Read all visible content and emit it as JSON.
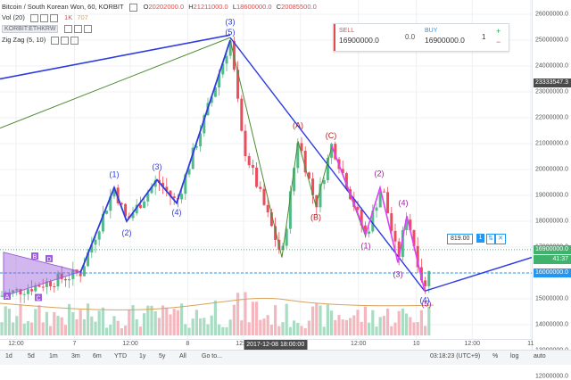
{
  "header": {
    "symbol": "Bitcoin / South Korean Won, 60, KORBIT",
    "ohlc": [
      {
        "label": "O",
        "value": "20202000.0"
      },
      {
        "label": "H",
        "value": "21211000.0"
      },
      {
        "label": "L",
        "value": "18600000.0"
      },
      {
        "label": "C",
        "value": "20085500.0"
      }
    ],
    "volume_label": "Vol (20)",
    "volume_values": [
      "1K",
      "707"
    ],
    "compare_symbol": "KORBIT:ETHKRW",
    "indicator_label": "Zig Zag (5, 10)"
  },
  "trade_panel": {
    "sell_label": "SELL",
    "sell_price": "16900000.0",
    "spread": "0.0",
    "buy_label": "BUY",
    "buy_price": "16900000.0",
    "quantity": "1",
    "plus": "+",
    "minus": "−",
    "sell_color": "#e04b4b",
    "buy_color": "#2196f3"
  },
  "price_axis": {
    "ticks": [
      "26000000.0",
      "25000000.0",
      "24000000.0",
      "23000000.0",
      "22000000.0",
      "21000000.0",
      "20000000.0",
      "19000000.0",
      "18000000.0",
      "17000000.0",
      "16000000.0",
      "15000000.0",
      "14000000.0",
      "13000000.0",
      "12000000.0"
    ],
    "tick_values": [
      26000000,
      25000000,
      24000000,
      23000000,
      22000000,
      21000000,
      20000000,
      19000000,
      18000000,
      17000000,
      16000000,
      15000000,
      14000000,
      13000000,
      12000000
    ],
    "tag_crosshair": "23333547.3",
    "tag_last": "16900000.0",
    "tag_countdown": "41:37",
    "tag_order": "16000000.0",
    "crosshair_value": 23333547.3,
    "last_value": 16900000,
    "order_value": 16000000,
    "last_color": "#3fb26b",
    "order_color": "#2196f3"
  },
  "time_axis": {
    "ticks": [
      {
        "label": "12:00",
        "pos": 0.03
      },
      {
        "label": "7",
        "pos": 0.14
      },
      {
        "label": "12:00",
        "pos": 0.245
      },
      {
        "label": "8",
        "pos": 0.353
      },
      {
        "label": "12:00",
        "pos": 0.458
      },
      {
        "label": "9",
        "pos": 0.565
      },
      {
        "label": "12:00",
        "pos": 0.674
      },
      {
        "label": "10",
        "pos": 0.783
      },
      {
        "label": "12:00",
        "pos": 0.888
      },
      {
        "label": "11",
        "pos": 0.998
      }
    ],
    "cursor_label": "2017-12-08 18:00:00",
    "cursor_pos": 0.518
  },
  "bottom_bar": {
    "timeframes": [
      "1d",
      "5d",
      "1m",
      "3m",
      "6m",
      "YTD",
      "1y",
      "5y",
      "All",
      "Go to..."
    ],
    "clock": "03:18:23 (UTC+9)",
    "percent": "%",
    "log": "log",
    "auto": "auto"
  },
  "wave_labels": {
    "blue": [
      "A",
      "B",
      "C",
      "D",
      "(1)",
      "(2)",
      "(3)",
      "(4)",
      "(5)",
      "(3)",
      "(4)"
    ],
    "red": [
      "(A)",
      "(B)",
      "(C)"
    ],
    "magenta": [
      "(1)",
      "(2)",
      "(3)",
      "(4)",
      "(5)"
    ]
  },
  "colors": {
    "up": "#53b987",
    "down": "#eb4d5c",
    "up_volume": "#a9dcc3",
    "down_volume": "#f5b7be",
    "zigzag": "#2d3be0",
    "trendline_green": "#4f8a32",
    "fib_magenta": "#e040fb",
    "triangle_purple": "#9c5ed9",
    "ema_volume": "#d9a25a"
  }
}
